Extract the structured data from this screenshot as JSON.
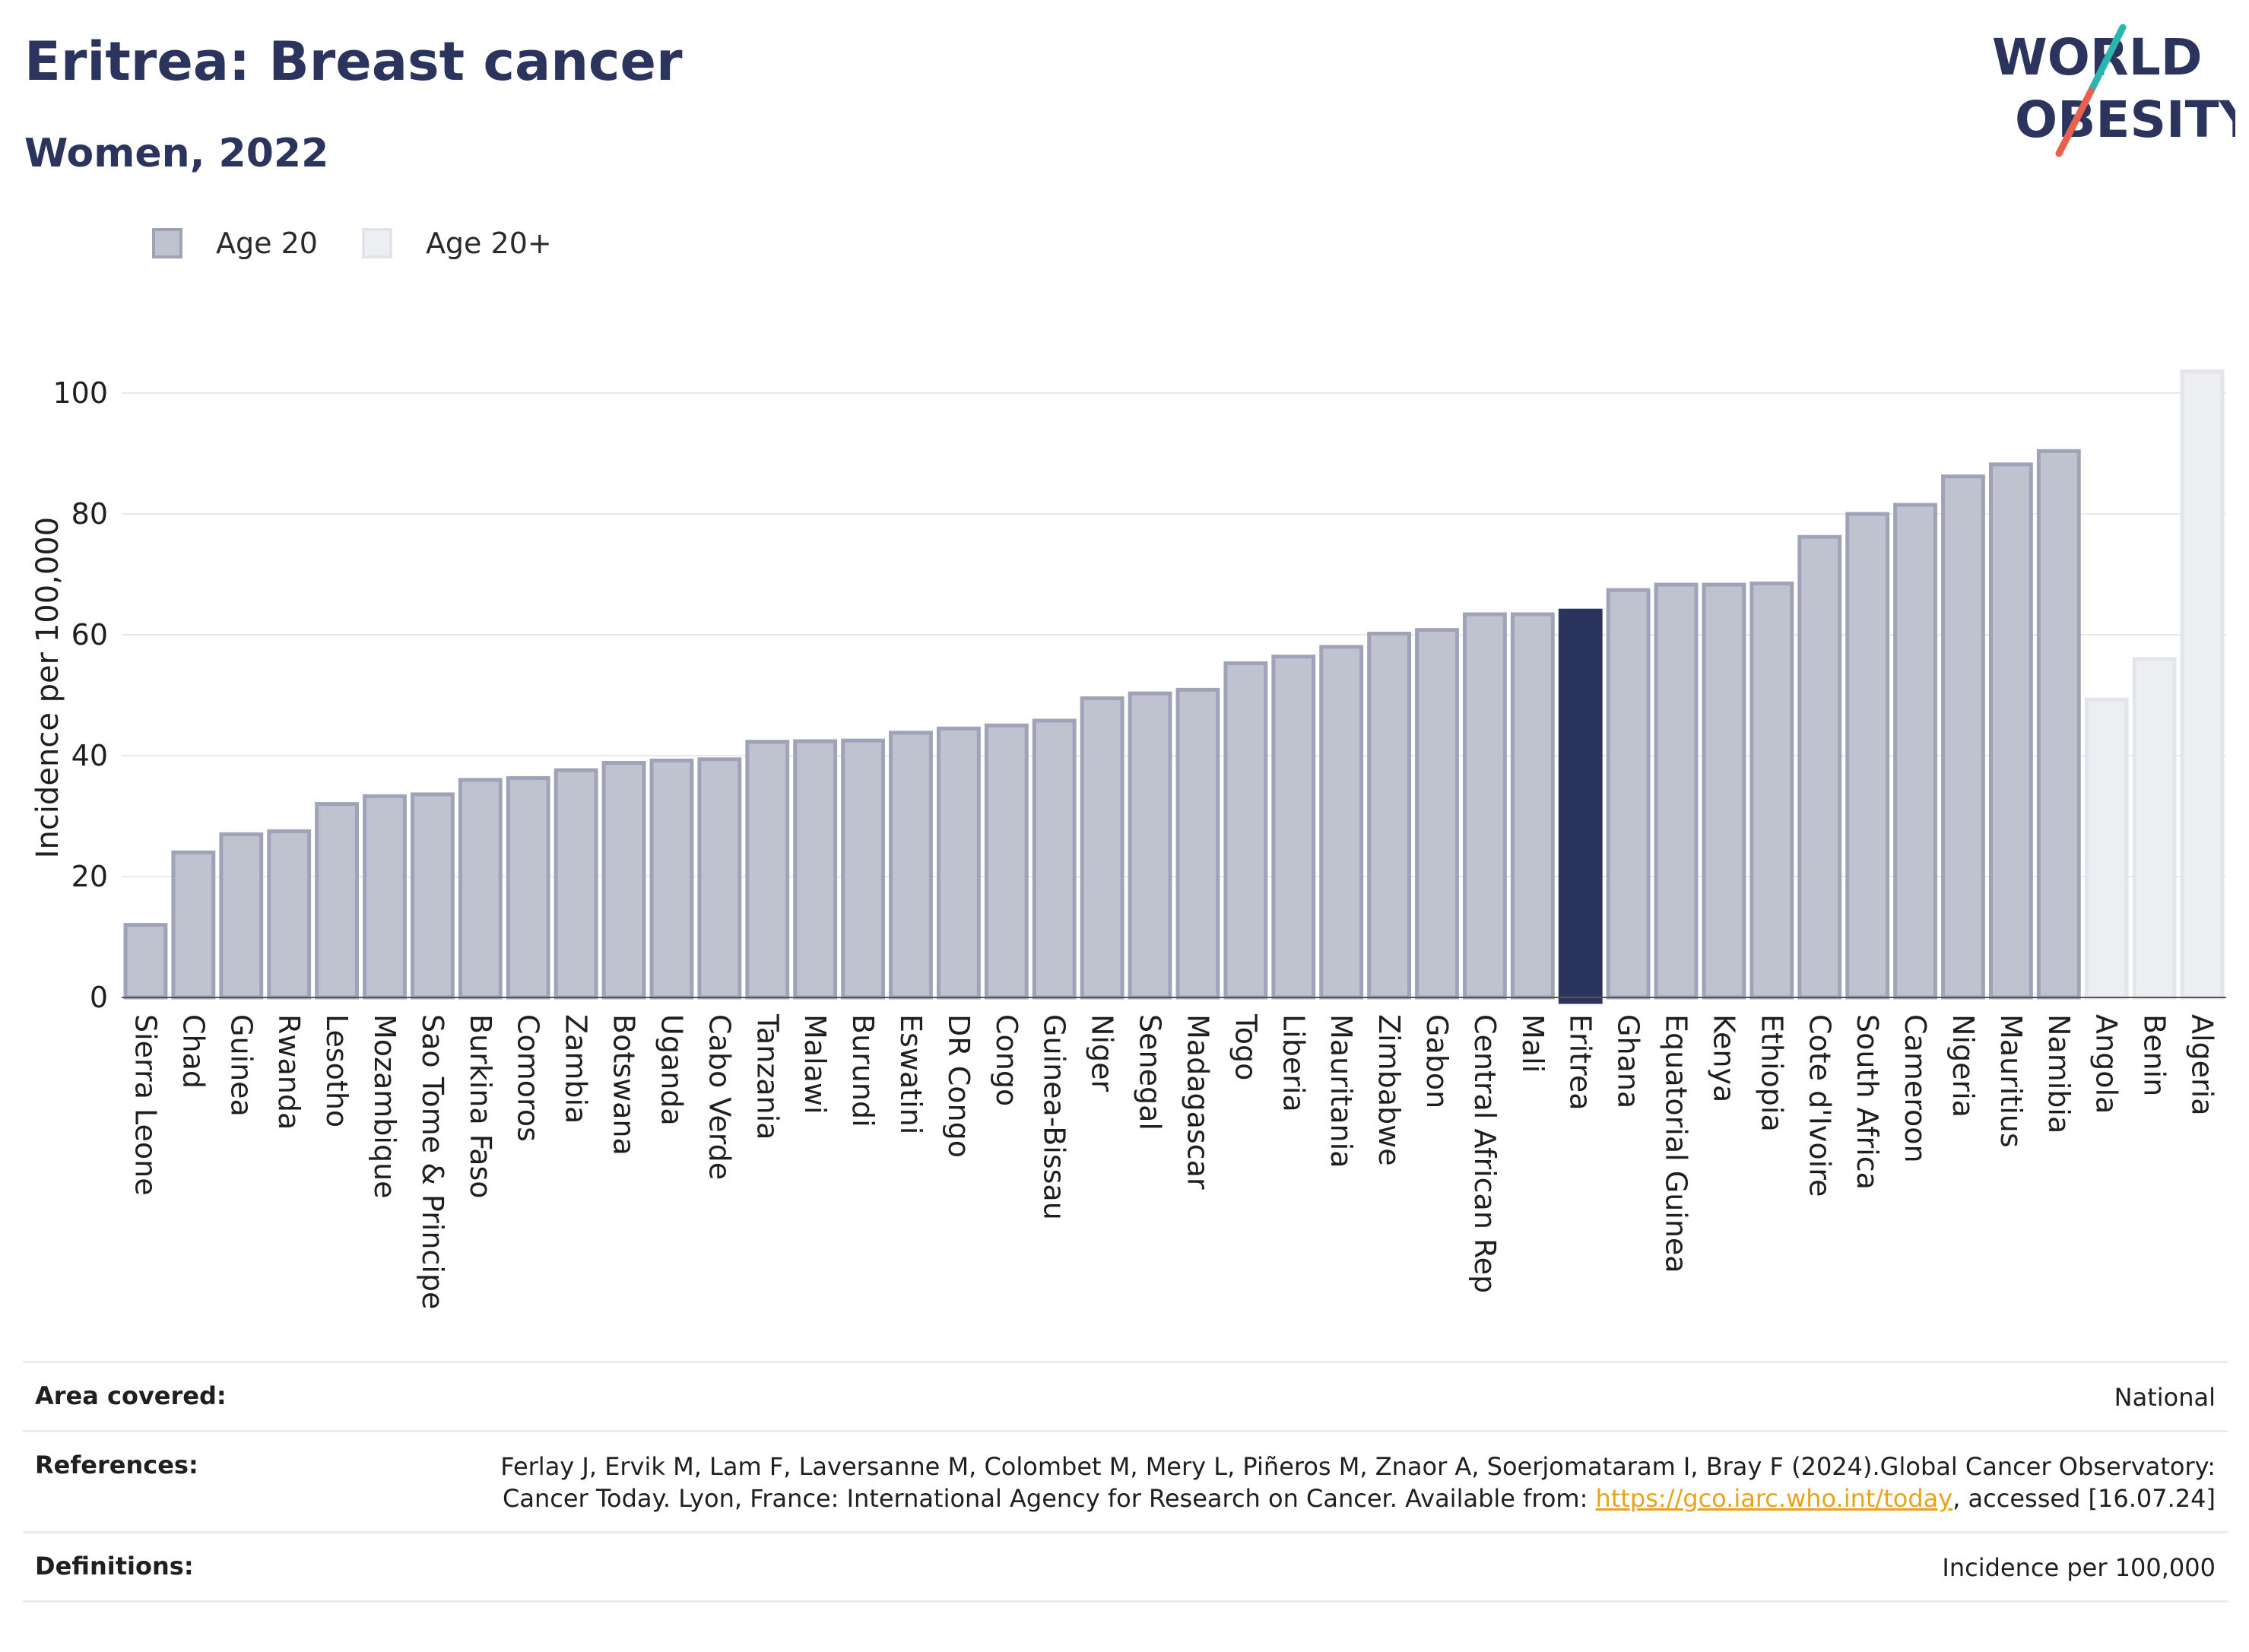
{
  "header": {
    "title": "Eritrea: Breast cancer",
    "subtitle": "Women, 2022"
  },
  "logo": {
    "line1": "WORLD",
    "line2": "OBESITY",
    "colors": {
      "text": "#2b345c",
      "slash_top": "#2bb5b0",
      "slash_bottom": "#e8614f"
    }
  },
  "legend": {
    "items": [
      {
        "label": "Age 20",
        "color": "#bfc2cf"
      },
      {
        "label": "Age 20+",
        "color": "#eceef2"
      }
    ]
  },
  "chart_data": {
    "type": "bar",
    "ylabel": "Incidence per 100,000",
    "xlabel": "",
    "ylim": [
      0,
      105
    ],
    "yticks": [
      0,
      20,
      40,
      60,
      80,
      100
    ],
    "grid": true,
    "highlight": "Eritrea",
    "colors": {
      "age20": "#bfc2cf",
      "age20_border": "#9ea3b8",
      "age20plus": "#eceef2",
      "age20plus_border": "#e3e5eb",
      "highlight": "#2b345c"
    },
    "categories": [
      "Sierra Leone",
      "Chad",
      "Guinea",
      "Rwanda",
      "Lesotho",
      "Mozambique",
      "Sao Tome & Principe",
      "Burkina Faso",
      "Comoros",
      "Zambia",
      "Botswana",
      "Uganda",
      "Cabo Verde",
      "Tanzania",
      "Malawi",
      "Burundi",
      "Eswatini",
      "DR Congo",
      "Congo",
      "Guinea-Bissau",
      "Niger",
      "Senegal",
      "Madagascar",
      "Togo",
      "Liberia",
      "Mauritania",
      "Zimbabwe",
      "Gabon",
      "Central African Rep",
      "Mali",
      "Eritrea",
      "Ghana",
      "Equatorial Guinea",
      "Kenya",
      "Ethiopia",
      "Cote d'Ivoire",
      "South Africa",
      "Cameroon",
      "Nigeria",
      "Mauritius",
      "Namibia",
      "Angola",
      "Benin",
      "Algeria"
    ],
    "values": [
      12,
      24,
      27,
      27.5,
      32,
      33.3,
      33.6,
      36,
      36.3,
      37.6,
      38.8,
      39.2,
      39.4,
      42.3,
      42.4,
      42.5,
      43.8,
      44.5,
      45,
      45.8,
      49.5,
      50.3,
      50.9,
      55.3,
      56.4,
      58,
      60.2,
      60.8,
      63.4,
      63.4,
      64,
      67.4,
      68.3,
      68.3,
      68.5,
      76.2,
      80,
      81.5,
      86.2,
      88.2,
      90.4,
      49.3,
      56,
      103.6
    ],
    "series_group": [
      "Age 20",
      "Age 20",
      "Age 20",
      "Age 20",
      "Age 20",
      "Age 20",
      "Age 20",
      "Age 20",
      "Age 20",
      "Age 20",
      "Age 20",
      "Age 20",
      "Age 20",
      "Age 20",
      "Age 20",
      "Age 20",
      "Age 20",
      "Age 20",
      "Age 20",
      "Age 20",
      "Age 20",
      "Age 20",
      "Age 20",
      "Age 20",
      "Age 20",
      "Age 20",
      "Age 20",
      "Age 20",
      "Age 20",
      "Age 20",
      "Age 20",
      "Age 20",
      "Age 20",
      "Age 20",
      "Age 20",
      "Age 20",
      "Age 20",
      "Age 20",
      "Age 20",
      "Age 20",
      "Age 20",
      "Age 20+",
      "Age 20+",
      "Age 20+"
    ]
  },
  "info": {
    "area_label": "Area covered:",
    "area_value": "National",
    "references_label": "References:",
    "references_text": "Ferlay J, Ervik M, Lam F, Laversanne M, Colombet M, Mery L, Piñeros M, Znaor A, Soerjomataram I, Bray F (2024).Global Cancer Observatory: Cancer Today. Lyon, France: International Agency for Research on Cancer. Available from: ",
    "references_link": "https://gco.iarc.who.int/today",
    "references_tail": ", accessed [16.07.24]",
    "definitions_label": "Definitions:",
    "definitions_value": "Incidence per 100,000"
  }
}
